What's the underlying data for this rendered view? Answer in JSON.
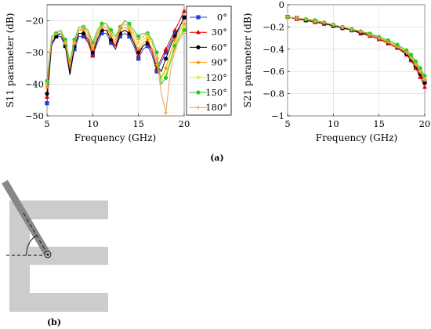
{
  "caption_a": "(a)",
  "caption_b": "(b)",
  "colors": {
    "0°": "#1f3fe0",
    "30°": "#e00000",
    "60°": "#000000",
    "90°": "#ff8c00",
    "120°": "#e8e800",
    "150°": "#22cc22",
    "180°": "#f0a050"
  },
  "chart_data": [
    {
      "type": "line",
      "xlabel": "Frequency (GHz)",
      "ylabel": "S11 parameter (dB)",
      "xlim": [
        5,
        20
      ],
      "ylim": [
        -50,
        -15
      ],
      "xticks": [
        "5",
        "10",
        "15",
        "20"
      ],
      "yticks": [
        "−20",
        "−30",
        "−40",
        "−50"
      ],
      "grid": true,
      "legend_position": "right-outside",
      "series": [
        {
          "name": "0°",
          "marker": "square",
          "x": [
            5,
            5.5,
            6,
            6.5,
            7,
            7.5,
            8,
            8.5,
            9,
            9.5,
            10,
            10.5,
            11,
            11.5,
            12,
            12.5,
            13,
            13.5,
            14,
            14.5,
            15,
            15.5,
            16,
            16.5,
            17,
            17.5,
            18,
            18.5,
            19,
            19.5,
            20
          ],
          "y": [
            -46,
            -28,
            -25,
            -25,
            -28,
            -37,
            -29,
            -25,
            -25,
            -27,
            -31,
            -27,
            -24,
            -24,
            -27,
            -29,
            -25,
            -24,
            -25,
            -28,
            -32,
            -29,
            -28,
            -31,
            -36,
            -33,
            -30,
            -27,
            -24,
            -22,
            -19
          ]
        },
        {
          "name": "30°",
          "marker": "triangle",
          "x": [
            5,
            5.5,
            6,
            6.5,
            7,
            7.5,
            8,
            8.5,
            9,
            9.5,
            10,
            10.5,
            11,
            11.5,
            12,
            12.5,
            13,
            13.5,
            14,
            14.5,
            15,
            15.5,
            16,
            16.5,
            17,
            17.5,
            18,
            18.5,
            19,
            19.5,
            20
          ],
          "y": [
            -44,
            -27,
            -25,
            -24,
            -28,
            -36,
            -28,
            -24,
            -24,
            -27,
            -31,
            -26,
            -23,
            -23,
            -26,
            -29,
            -24,
            -23,
            -24,
            -27,
            -31,
            -28,
            -27,
            -30,
            -35,
            -32,
            -29,
            -26,
            -23,
            -20,
            -17
          ]
        },
        {
          "name": "60°",
          "marker": "circle",
          "x": [
            5,
            5.5,
            6,
            6.5,
            7,
            7.5,
            8,
            8.5,
            9,
            9.5,
            10,
            10.5,
            11,
            11.5,
            12,
            12.5,
            13,
            13.5,
            14,
            14.5,
            15,
            15.5,
            16,
            16.5,
            17,
            17.5,
            18,
            18.5,
            19,
            19.5,
            20
          ],
          "y": [
            -43,
            -27,
            -25,
            -24,
            -28,
            -37,
            -28,
            -24,
            -24,
            -26,
            -30,
            -26,
            -23,
            -23,
            -26,
            -28,
            -24,
            -23,
            -24,
            -27,
            -30,
            -28,
            -27,
            -29,
            -34,
            -36,
            -32,
            -28,
            -25,
            -22,
            -19
          ]
        },
        {
          "name": "90°",
          "marker": "star",
          "x": [
            5,
            5.5,
            6,
            6.5,
            7,
            7.5,
            8,
            8.5,
            9,
            9.5,
            10,
            10.5,
            11,
            11.5,
            12,
            12.5,
            13,
            13.5,
            14,
            14.5,
            15,
            15.5,
            16,
            16.5,
            17,
            17.5,
            18,
            18.5,
            19,
            19.5,
            20
          ],
          "y": [
            -41,
            -26,
            -24,
            -24,
            -27,
            -35,
            -27,
            -23,
            -23,
            -25,
            -29,
            -25,
            -22,
            -22,
            -25,
            -27,
            -23,
            -22,
            -23,
            -26,
            -29,
            -27,
            -26,
            -29,
            -34,
            -38,
            -35,
            -30,
            -26,
            -23,
            -21
          ]
        },
        {
          "name": "120°",
          "marker": "star",
          "x": [
            5,
            5.5,
            6,
            6.5,
            7,
            7.5,
            8,
            8.5,
            9,
            9.5,
            10,
            10.5,
            11,
            11.5,
            12,
            12.5,
            13,
            13.5,
            14,
            14.5,
            15,
            15.5,
            16,
            16.5,
            17,
            17.5,
            18,
            18.5,
            19,
            19.5,
            20
          ],
          "y": [
            -40,
            -26,
            -24,
            -23,
            -27,
            -34,
            -27,
            -23,
            -22,
            -24,
            -28,
            -24,
            -21,
            -21,
            -24,
            -26,
            -22,
            -21,
            -22,
            -25,
            -27,
            -26,
            -25,
            -27,
            -32,
            -39,
            -37,
            -32,
            -27,
            -24,
            -22
          ]
        },
        {
          "name": "150°",
          "marker": "circle",
          "x": [
            5,
            5.5,
            6,
            6.5,
            7,
            7.5,
            8,
            8.5,
            9,
            9.5,
            10,
            10.5,
            11,
            11.5,
            12,
            12.5,
            13,
            13.5,
            14,
            14.5,
            15,
            15.5,
            16,
            16.5,
            17,
            17.5,
            18,
            18.5,
            19,
            19.5,
            20
          ],
          "y": [
            -39,
            -25,
            -24,
            -23,
            -26,
            -33,
            -26,
            -22,
            -22,
            -23,
            -27,
            -23,
            -21,
            -21,
            -23,
            -25,
            -22,
            -20,
            -21,
            -23,
            -25,
            -24,
            -24,
            -26,
            -30,
            -40,
            -38,
            -33,
            -28,
            -25,
            -23
          ]
        },
        {
          "name": "180°",
          "marker": "plus",
          "x": [
            5,
            5.5,
            6,
            6.5,
            7,
            7.5,
            8,
            8.5,
            9,
            9.5,
            10,
            10.5,
            11,
            11.5,
            12,
            12.5,
            13,
            13.5,
            14,
            14.5,
            15,
            15.5,
            16,
            16.5,
            17,
            17.5,
            18,
            18.5,
            19,
            19.5,
            20
          ],
          "y": [
            -40,
            -26,
            -24,
            -24,
            -27,
            -34,
            -27,
            -23,
            -22,
            -24,
            -28,
            -24,
            -22,
            -22,
            -24,
            -26,
            -22,
            -21,
            -22,
            -24,
            -26,
            -25,
            -24,
            -27,
            -32,
            -43,
            -49,
            -36,
            -29,
            -26,
            -24
          ]
        }
      ]
    },
    {
      "type": "line",
      "xlabel": "Frequency (GHz)",
      "ylabel": "S21 parameter (dB)",
      "xlim": [
        5,
        20
      ],
      "ylim": [
        -1,
        0
      ],
      "xticks": [
        "5",
        "10",
        "15",
        "20"
      ],
      "yticks": [
        "0",
        "−0.2",
        "−0.4",
        "−0.6",
        "−0.8",
        "−1"
      ],
      "grid": true,
      "series": [
        {
          "name": "0°",
          "marker": "square",
          "x": [
            5,
            6,
            7,
            8,
            9,
            10,
            11,
            12,
            13,
            14,
            15,
            16,
            17,
            18,
            18.5,
            19,
            19.5,
            20
          ],
          "y": [
            -0.11,
            -0.12,
            -0.14,
            -0.15,
            -0.17,
            -0.19,
            -0.21,
            -0.23,
            -0.25,
            -0.28,
            -0.31,
            -0.34,
            -0.38,
            -0.43,
            -0.48,
            -0.55,
            -0.62,
            -0.7
          ]
        },
        {
          "name": "30°",
          "marker": "triangle",
          "x": [
            5,
            6,
            7,
            8,
            9,
            10,
            11,
            12,
            13,
            14,
            15,
            16,
            17,
            18,
            18.5,
            19,
            19.5,
            20
          ],
          "y": [
            -0.11,
            -0.13,
            -0.14,
            -0.16,
            -0.17,
            -0.19,
            -0.21,
            -0.23,
            -0.26,
            -0.28,
            -0.31,
            -0.35,
            -0.39,
            -0.45,
            -0.5,
            -0.57,
            -0.65,
            -0.74
          ]
        },
        {
          "name": "60°",
          "marker": "circle",
          "x": [
            5,
            6,
            7,
            8,
            9,
            10,
            11,
            12,
            13,
            14,
            15,
            16,
            17,
            18,
            18.5,
            19,
            19.5,
            20
          ],
          "y": [
            -0.11,
            -0.12,
            -0.14,
            -0.15,
            -0.17,
            -0.19,
            -0.21,
            -0.22,
            -0.25,
            -0.27,
            -0.3,
            -0.34,
            -0.38,
            -0.44,
            -0.49,
            -0.55,
            -0.62,
            -0.7
          ]
        },
        {
          "name": "90°",
          "marker": "star",
          "x": [
            5,
            6,
            7,
            8,
            9,
            10,
            11,
            12,
            13,
            14,
            15,
            16,
            17,
            18,
            18.5,
            19,
            19.5,
            20
          ],
          "y": [
            -0.11,
            -0.12,
            -0.13,
            -0.15,
            -0.16,
            -0.18,
            -0.2,
            -0.22,
            -0.24,
            -0.27,
            -0.3,
            -0.33,
            -0.37,
            -0.42,
            -0.47,
            -0.53,
            -0.6,
            -0.68
          ]
        },
        {
          "name": "120°",
          "marker": "star",
          "x": [
            5,
            6,
            7,
            8,
            9,
            10,
            11,
            12,
            13,
            14,
            15,
            16,
            17,
            18,
            18.5,
            19,
            19.5,
            20
          ],
          "y": [
            -0.11,
            -0.12,
            -0.13,
            -0.15,
            -0.16,
            -0.18,
            -0.2,
            -0.22,
            -0.24,
            -0.26,
            -0.29,
            -0.33,
            -0.37,
            -0.42,
            -0.46,
            -0.52,
            -0.58,
            -0.65
          ]
        },
        {
          "name": "150°",
          "marker": "circle",
          "x": [
            5,
            6,
            7,
            8,
            9,
            10,
            11,
            12,
            13,
            14,
            15,
            16,
            17,
            18,
            18.5,
            19,
            19.5,
            20
          ],
          "y": [
            -0.11,
            -0.12,
            -0.13,
            -0.14,
            -0.16,
            -0.18,
            -0.2,
            -0.22,
            -0.24,
            -0.26,
            -0.29,
            -0.32,
            -0.36,
            -0.41,
            -0.45,
            -0.51,
            -0.57,
            -0.64
          ]
        },
        {
          "name": "180°",
          "marker": "plus",
          "x": [
            5,
            6,
            7,
            8,
            9,
            10,
            11,
            12,
            13,
            14,
            15,
            16,
            17,
            18,
            18.5,
            19,
            19.5,
            20
          ],
          "y": [
            -0.11,
            -0.12,
            -0.13,
            -0.15,
            -0.16,
            -0.18,
            -0.2,
            -0.22,
            -0.24,
            -0.27,
            -0.3,
            -0.34,
            -0.38,
            -0.43,
            -0.48,
            -0.54,
            -0.6,
            -0.67
          ]
        }
      ]
    }
  ]
}
